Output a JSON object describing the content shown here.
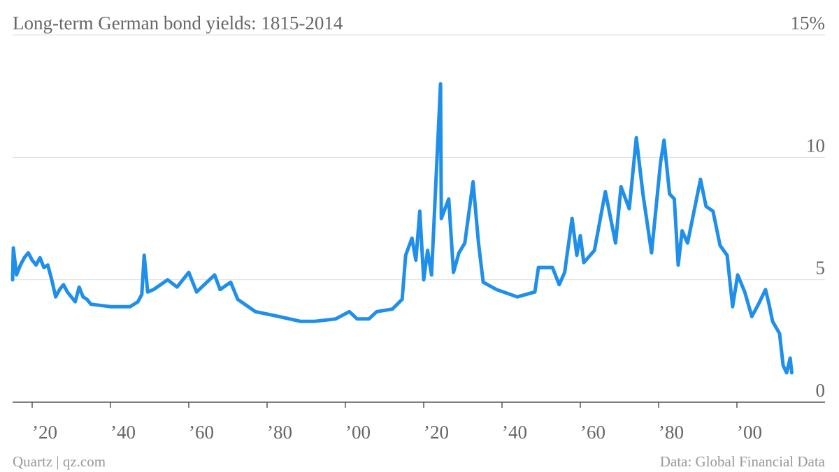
{
  "chart_data": {
    "type": "line",
    "title": "Long-term German bond yields: 1815-2014",
    "source_left": "Quartz | qz.com",
    "source_right": "Data: Global Financial Data",
    "x": [
      1815,
      1815.2,
      1816,
      1817,
      1818,
      1819,
      1820,
      1821,
      1822,
      1823,
      1824,
      1825,
      1826,
      1827,
      1828,
      1829,
      1830,
      1831,
      1832,
      1833,
      1834,
      1835,
      1840,
      1845,
      1847,
      1848,
      1848.6,
      1849.5,
      1851,
      1854.6,
      1857,
      1860,
      1862,
      1866.6,
      1868,
      1870.7,
      1872.5,
      1877,
      1883,
      1888.6,
      1892,
      1897.5,
      1901,
      1903,
      1906,
      1908,
      1912,
      1914.5,
      1915.4,
      1917,
      1918,
      1919,
      1920,
      1921,
      1922,
      1924.3,
      1924.5,
      1926.4,
      1927.6,
      1929,
      1930.5,
      1932.6,
      1934,
      1935.2,
      1938.6,
      1943.9,
      1948.4,
      1949.3,
      1952.9,
      1954.6,
      1956,
      1957.9,
      1959.1,
      1960,
      1960.9,
      1963.6,
      1966.4,
      1969,
      1970.4,
      1972.5,
      1974.3,
      1976,
      1978.2,
      1980.5,
      1981.4,
      1982.8,
      1984,
      1985,
      1986,
      1987.4,
      1990.7,
      1992.1,
      1993.9,
      1995.7,
      1997.5,
      1998.9,
      2000.2,
      2002,
      2003.8,
      2005.5,
      2007.3,
      2008.2,
      2009.1,
      2010.9,
      2011.8,
      2012.7,
      2013.6,
      2014
    ],
    "values": [
      5.0,
      6.3,
      5.2,
      5.6,
      5.9,
      6.1,
      5.8,
      5.6,
      5.9,
      5.5,
      5.6,
      5.0,
      4.3,
      4.6,
      4.8,
      4.5,
      4.3,
      4.1,
      4.7,
      4.3,
      4.2,
      4.0,
      3.9,
      3.9,
      4.1,
      4.4,
      6.0,
      4.5,
      4.6,
      5.0,
      4.7,
      5.3,
      4.5,
      5.2,
      4.6,
      4.9,
      4.2,
      3.7,
      3.5,
      3.3,
      3.3,
      3.4,
      3.7,
      3.4,
      3.4,
      3.7,
      3.8,
      4.2,
      6.0,
      6.7,
      5.8,
      7.8,
      5.0,
      6.2,
      5.2,
      13.0,
      7.5,
      8.3,
      5.3,
      6.1,
      6.5,
      9.0,
      6.5,
      4.9,
      4.6,
      4.3,
      4.5,
      5.5,
      5.5,
      4.8,
      5.3,
      7.5,
      6.0,
      6.8,
      5.7,
      6.2,
      8.6,
      6.5,
      8.8,
      7.9,
      10.8,
      8.5,
      6.1,
      9.8,
      10.7,
      8.5,
      8.3,
      5.6,
      7.0,
      6.5,
      9.1,
      8.0,
      7.8,
      6.4,
      6.0,
      3.9,
      5.2,
      4.5,
      3.5,
      4.0,
      4.6,
      4.0,
      3.3,
      2.8,
      1.5,
      1.2,
      1.8,
      1.2
    ],
    "color": "#1f8fea",
    "xlim": [
      1815,
      2016
    ],
    "xticks": [
      {
        "value": 1820,
        "label": "’20"
      },
      {
        "value": 1840,
        "label": "’40"
      },
      {
        "value": 1860,
        "label": "’60"
      },
      {
        "value": 1880,
        "label": "’80"
      },
      {
        "value": 1900,
        "label": "’00"
      },
      {
        "value": 1920,
        "label": "’20"
      },
      {
        "value": 1940,
        "label": "’40"
      },
      {
        "value": 1960,
        "label": "’60"
      },
      {
        "value": 1980,
        "label": "’80"
      },
      {
        "value": 2000,
        "label": "’00"
      }
    ],
    "ylim": [
      0,
      15
    ],
    "yticks": [
      0,
      5,
      10,
      {
        "value": 15,
        "label": "15%"
      }
    ],
    "grid": true
  }
}
